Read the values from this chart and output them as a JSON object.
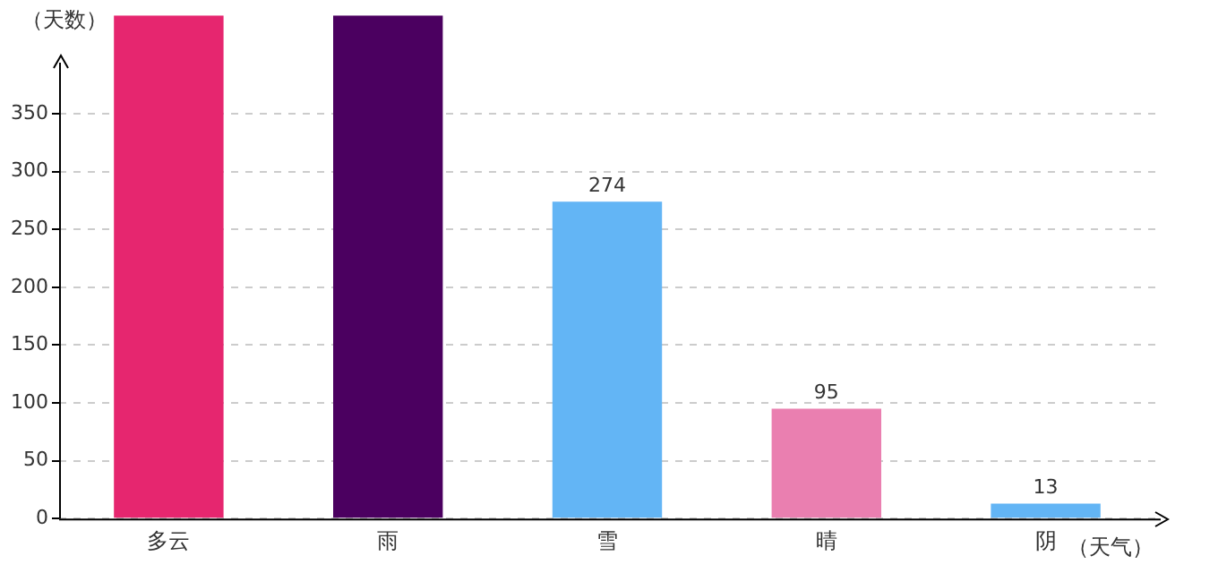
{
  "chart_data": {
    "type": "bar",
    "xlabel": "（天气）",
    "ylabel": "（天数）",
    "categories": [
      "多云",
      "雨",
      "雪",
      "晴",
      "阴"
    ],
    "values": [
      435,
      435,
      274,
      95,
      13
    ],
    "colors": [
      "#e6266f",
      "#4b0060",
      "#63b5f5",
      "#ea7fb0",
      "#63b5f5"
    ],
    "value_labels": [
      null,
      null,
      "274",
      "95",
      "13"
    ],
    "ylim": [
      0,
      435
    ],
    "yticks": [
      0,
      50,
      100,
      150,
      200,
      250,
      300,
      350
    ],
    "grid": "y",
    "legend": false
  }
}
